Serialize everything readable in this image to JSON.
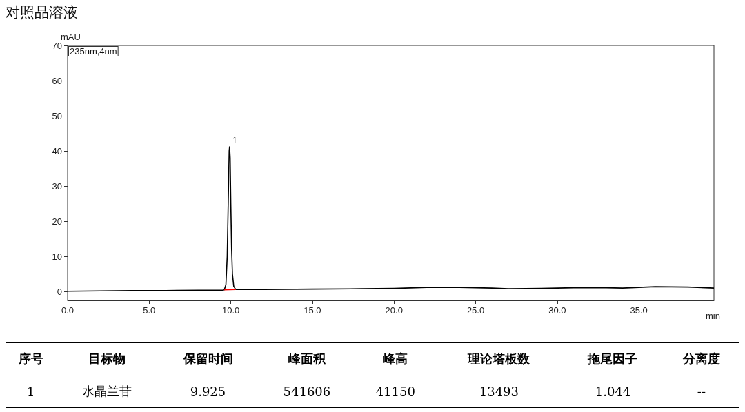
{
  "chart_data": {
    "type": "line",
    "title": "对照品溶液",
    "xlabel": "min",
    "ylabel": "mAU",
    "xlim": [
      0,
      39.6
    ],
    "ylim": [
      -2.5,
      70
    ],
    "xticks": [
      {
        "value": 0,
        "label": "0.0"
      },
      {
        "value": 5,
        "label": "5.0"
      },
      {
        "value": 10,
        "label": "10.0"
      },
      {
        "value": 15,
        "label": "15.0"
      },
      {
        "value": 20,
        "label": "20.0"
      },
      {
        "value": 25,
        "label": "25.0"
      },
      {
        "value": 30,
        "label": "30.0"
      },
      {
        "value": 35,
        "label": "35.0"
      }
    ],
    "yticks": [
      0,
      10,
      20,
      30,
      40,
      50,
      60,
      70
    ],
    "grid": false,
    "marker": "none",
    "line_style": "solid",
    "series": [
      {
        "color": "#000000",
        "x": [
          0,
          2,
          4,
          6,
          8,
          9.5,
          9.6,
          9.7,
          9.78,
          9.84,
          9.9,
          9.925,
          9.96,
          10.0,
          10.05,
          10.1,
          10.18,
          10.3,
          12,
          15,
          18,
          20,
          22,
          24,
          26,
          27,
          29,
          31,
          33,
          34,
          36,
          38,
          39.6
        ],
        "values": [
          0.1,
          0.2,
          0.3,
          0.3,
          0.4,
          0.4,
          0.5,
          2,
          10,
          25,
          40,
          41.2,
          38,
          25,
          12,
          5,
          1.5,
          0.6,
          0.6,
          0.7,
          0.8,
          0.9,
          1.2,
          1.2,
          1.0,
          0.8,
          0.9,
          1.1,
          1.1,
          1.0,
          1.4,
          1.3,
          1.0
        ]
      },
      {
        "color": "#ff0000",
        "x": [
          9.6,
          10.3
        ],
        "values": [
          0.5,
          0.6
        ]
      }
    ],
    "annotations": [
      "235nm,4nm",
      {
        "text": "1",
        "x": 9.925,
        "y": 41.2
      },
      "序号",
      "目标物",
      "保留时间",
      "峰面积",
      "峰高",
      "理论塔板数",
      "拖尾因子",
      "分离度",
      "1",
      "水晶兰苷",
      "9.925",
      "541606",
      "41150",
      "13493",
      "1.044",
      "--"
    ]
  }
}
